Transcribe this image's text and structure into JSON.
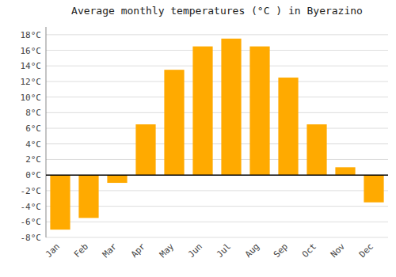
{
  "chart_data": {
    "type": "bar",
    "title": "Average monthly temperatures (°C ) in Byerazino",
    "categories": [
      "Jan",
      "Feb",
      "Mar",
      "Apr",
      "May",
      "Jun",
      "Jul",
      "Aug",
      "Sep",
      "Oct",
      "Nov",
      "Dec"
    ],
    "values": [
      -7.0,
      -5.5,
      -1.0,
      6.5,
      13.5,
      16.5,
      17.5,
      16.5,
      12.5,
      6.5,
      1.0,
      -3.5
    ],
    "color": "#FFAA00",
    "ylim": [
      -8,
      19
    ],
    "yticks": [
      {
        "value": -8,
        "label": "-8°C"
      },
      {
        "value": -6,
        "label": "-6°C"
      },
      {
        "value": -4,
        "label": "-4°C"
      },
      {
        "value": -2,
        "label": "-2°C"
      },
      {
        "value": 0,
        "label": "0°C"
      },
      {
        "value": 2,
        "label": "2°C"
      },
      {
        "value": 4,
        "label": "4°C"
      },
      {
        "value": 6,
        "label": "6°C"
      },
      {
        "value": 8,
        "label": "8°C"
      },
      {
        "value": 10,
        "label": "10°C"
      },
      {
        "value": 12,
        "label": "12°C"
      },
      {
        "value": 14,
        "label": "14°C"
      },
      {
        "value": 16,
        "label": "16°C"
      },
      {
        "value": 18,
        "label": "18°C"
      }
    ],
    "grid": true
  }
}
